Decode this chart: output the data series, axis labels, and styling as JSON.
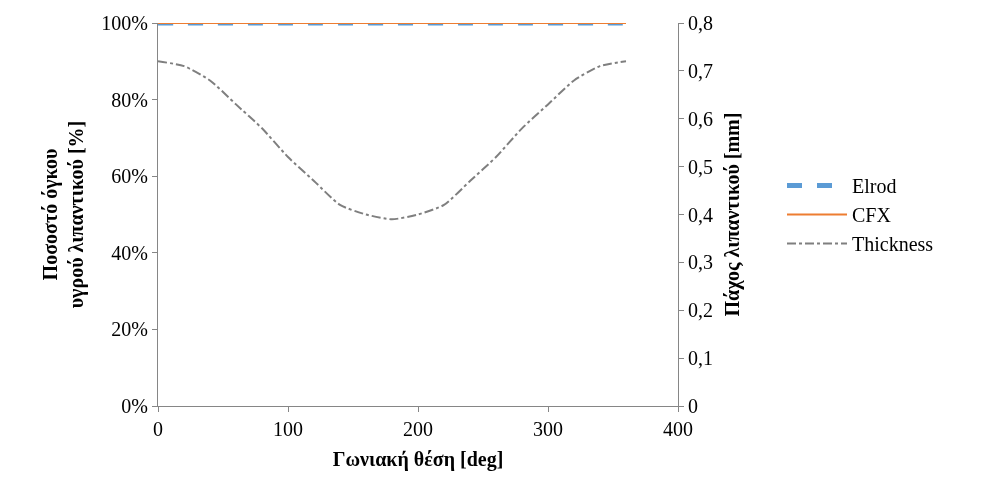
{
  "chart_data": {
    "type": "line",
    "xlabel": "Γωνιακή θέση [deg]",
    "ylabel": "Ποσοστό όγκου\nυγρού λιπαντικού [%]",
    "y2label": "Πάχος λιπαντικού [mm]",
    "x": [
      0,
      20,
      40,
      60,
      80,
      100,
      120,
      140,
      160,
      180,
      200,
      220,
      240,
      260,
      280,
      300,
      320,
      340,
      360
    ],
    "series": [
      {
        "name": "Elrod",
        "color": "#5b9bd5",
        "line_style": "dashed",
        "values": [
          100,
          100,
          100,
          100,
          100,
          100,
          100,
          100,
          100,
          100,
          100,
          100,
          100,
          100,
          100,
          100,
          100,
          100,
          100
        ]
      },
      {
        "name": "CFX",
        "color": "#ed7d31",
        "line_style": "solid",
        "values": [
          100,
          100,
          100,
          100,
          100,
          100,
          100,
          100,
          100,
          100,
          100,
          100,
          100,
          100,
          100,
          100,
          100,
          100,
          100
        ]
      },
      {
        "name": "Thickness",
        "color": "#7f7f7f",
        "line_style": "dashdot",
        "axis": "y2",
        "values": [
          0.72,
          0.71,
          0.68,
          0.63,
          0.58,
          0.52,
          0.47,
          0.42,
          0.4,
          0.39,
          0.4,
          0.42,
          0.47,
          0.52,
          0.58,
          0.63,
          0.68,
          0.71,
          0.72
        ]
      }
    ],
    "xlim": [
      0,
      400
    ],
    "xticks": [
      0,
      100,
      200,
      300,
      400
    ],
    "ylim": [
      0,
      100
    ],
    "yticks": [
      {
        "value": 0,
        "label": "0%"
      },
      {
        "value": 20,
        "label": "20%"
      },
      {
        "value": 40,
        "label": "40%"
      },
      {
        "value": 60,
        "label": "60%"
      },
      {
        "value": 80,
        "label": "80%"
      },
      {
        "value": 100,
        "label": "100%"
      }
    ],
    "y2lim": [
      0,
      0.8
    ],
    "y2ticks": [
      0,
      {
        "value": 0.1,
        "label": "0,1"
      },
      {
        "value": 0.2,
        "label": "0,2"
      },
      {
        "value": 0.3,
        "label": "0,3"
      },
      {
        "value": 0.4,
        "label": "0,4"
      },
      {
        "value": 0.5,
        "label": "0,5"
      },
      {
        "value": 0.6,
        "label": "0,6"
      },
      {
        "value": 0.7,
        "label": "0,7"
      },
      {
        "value": 0.8,
        "label": "0,8"
      }
    ],
    "grid": false,
    "legend": "right",
    "marker": "none"
  }
}
